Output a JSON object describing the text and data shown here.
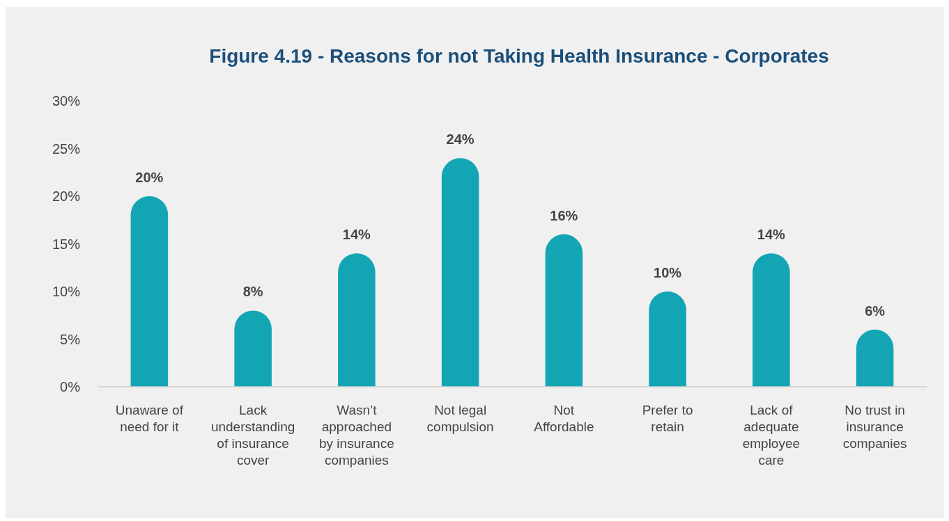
{
  "chart_data": {
    "type": "bar",
    "title": "Figure 4.19 - Reasons for not Taking Health Insurance - Corporates",
    "categories": [
      "Unaware of need for it",
      "Lack understanding of insurance cover",
      "Wasn’t approached by insurance companies",
      "Not legal compulsion",
      "Not Affordable",
      "Prefer to retain",
      "Lack of adequate employee care",
      "No trust in insurance companies"
    ],
    "values": [
      20,
      8,
      14,
      24,
      16,
      10,
      14,
      6
    ],
    "value_labels": [
      "20%",
      "8%",
      "14%",
      "24%",
      "16%",
      "10%",
      "14%",
      "6%"
    ],
    "color": "#14a5b5",
    "ylim": [
      0,
      30
    ],
    "yticks": [
      {
        "value": 0,
        "label": "0%"
      },
      {
        "value": 5,
        "label": "5%"
      },
      {
        "value": 10,
        "label": "10%"
      },
      {
        "value": 15,
        "label": "15%"
      },
      {
        "value": 20,
        "label": "20%"
      },
      {
        "value": 25,
        "label": "25%"
      },
      {
        "value": 30,
        "label": "30%"
      }
    ],
    "grid": false
  }
}
